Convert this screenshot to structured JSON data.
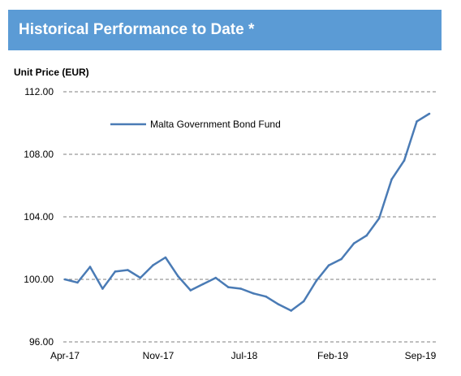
{
  "header": {
    "title": "Historical Performance to Date *"
  },
  "chart_data": {
    "type": "line",
    "ylabel": "Unit Price (EUR)",
    "ylim": [
      96,
      112
    ],
    "y_ticks": [
      "96.00",
      "100.00",
      "104.00",
      "108.00",
      "112.00"
    ],
    "x_ticks": [
      "Apr-17",
      "Nov-17",
      "Jul-18",
      "Feb-19",
      "Sep-19"
    ],
    "grid": "horizontal dashed",
    "legend_position": "top-left",
    "series": [
      {
        "name": "Malta Government Bond Fund",
        "color": "#4a7bb5",
        "x": [
          "Apr-17",
          "May-17",
          "Jun-17",
          "Jul-17",
          "Aug-17",
          "Sep-17",
          "Oct-17",
          "Nov-17",
          "Dec-17",
          "Jan-18",
          "Feb-18",
          "Mar-18",
          "Apr-18",
          "May-18",
          "Jun-18",
          "Jul-18",
          "Aug-18",
          "Sep-18",
          "Oct-18",
          "Nov-18",
          "Dec-18",
          "Jan-19",
          "Feb-19",
          "Mar-19",
          "Apr-19",
          "May-19",
          "Jun-19",
          "Jul-19",
          "Aug-19",
          "Sep-19"
        ],
        "values": [
          100.0,
          99.8,
          100.8,
          99.4,
          100.5,
          100.6,
          100.1,
          100.9,
          101.4,
          100.2,
          99.3,
          99.7,
          100.1,
          99.5,
          99.4,
          99.1,
          98.9,
          98.4,
          98.0,
          98.6,
          99.9,
          100.9,
          101.3,
          102.3,
          102.8,
          103.9,
          106.4,
          107.6,
          110.1,
          110.6
        ]
      }
    ]
  }
}
